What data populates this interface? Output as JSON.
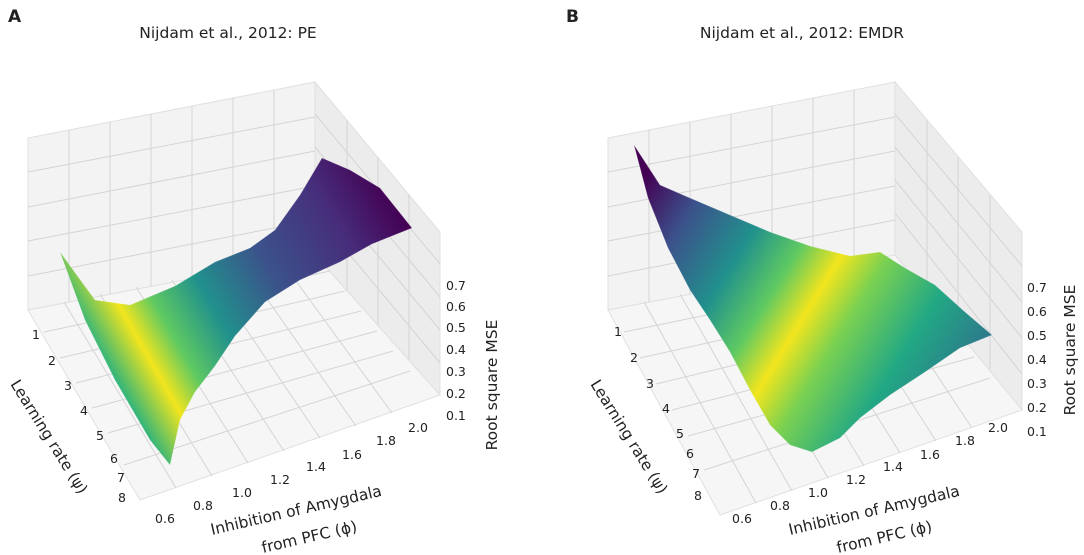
{
  "figure": {
    "panels": [
      {
        "letter": "A",
        "title": "Nijdam et al., 2012: PE"
      },
      {
        "letter": "B",
        "title": "Nijdam et al., 2012: EMDR"
      }
    ]
  },
  "chart_data": [
    {
      "type": "surface3d",
      "title": "Nijdam et al., 2012: PE",
      "x_label": "Inhibition of Amygdala",
      "x_label_line2": "from PFC (ϕ)",
      "y_label": "Learning rate (ψ)",
      "z_label": "Root square MSE",
      "x_ticks": [
        "0.6",
        "0.8",
        "1.0",
        "1.2",
        "1.4",
        "1.6",
        "1.8",
        "2.0"
      ],
      "y_ticks": [
        "1",
        "2",
        "3",
        "4",
        "5",
        "6",
        "7",
        "8"
      ],
      "z_ticks": [
        "0.1",
        "0.2",
        "0.3",
        "0.4",
        "0.5",
        "0.6",
        "0.7"
      ],
      "x_range": [
        0.5,
        2.1
      ],
      "y_range": [
        0.5,
        8.5
      ],
      "z_range": [
        0.05,
        0.75
      ],
      "colormap": "viridis",
      "grid": true,
      "description_of_surface": "Valley of minimum error near inhibition 0.7-0.9, rising to about 0.7 at high inhibition",
      "sample_points_inhibition": [
        0.6,
        0.8,
        1.0,
        1.2,
        1.4,
        1.6,
        1.8,
        2.0
      ],
      "sample_points_rmse_at_mid_learning_rate": [
        0.32,
        0.12,
        0.2,
        0.33,
        0.46,
        0.58,
        0.66,
        0.7
      ]
    },
    {
      "type": "surface3d",
      "title": "Nijdam et al., 2012: EMDR",
      "x_label": "Inhibition of Amygdala",
      "x_label_line2": "from PFC (ϕ)",
      "y_label": "Learning rate (ψ)",
      "z_label": "Root square MSE",
      "x_ticks": [
        "0.6",
        "0.8",
        "1.0",
        "1.2",
        "1.4",
        "1.6",
        "1.8",
        "2.0"
      ],
      "y_ticks": [
        "1",
        "2",
        "3",
        "4",
        "5",
        "6",
        "7",
        "8"
      ],
      "z_ticks": [
        "0.1",
        "0.2",
        "0.3",
        "0.4",
        "0.5",
        "0.6",
        "0.7"
      ],
      "x_range": [
        0.5,
        2.1
      ],
      "y_range": [
        0.5,
        8.5
      ],
      "z_range": [
        0.05,
        0.75
      ],
      "colormap": "viridis",
      "grid": true,
      "description_of_surface": "High error (~0.75) at low inhibition and low learning rate, minimum near inhibition 1.0-1.2",
      "sample_points_inhibition": [
        0.6,
        0.8,
        1.0,
        1.2,
        1.4,
        1.6,
        1.8,
        2.0
      ],
      "sample_points_rmse_at_mid_learning_rate": [
        0.55,
        0.3,
        0.14,
        0.12,
        0.2,
        0.3,
        0.38,
        0.42
      ]
    }
  ]
}
